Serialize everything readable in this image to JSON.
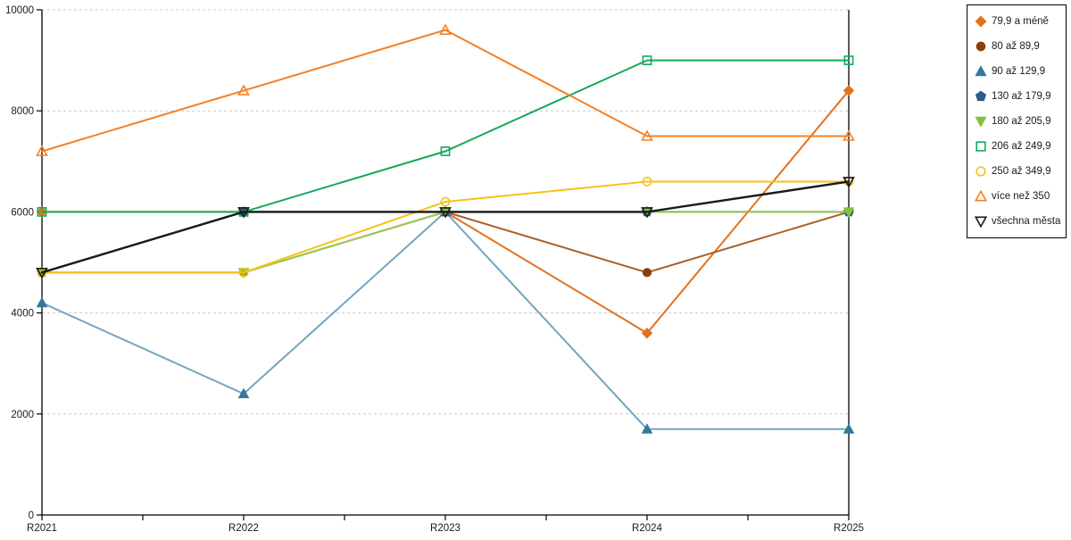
{
  "chart_data": {
    "type": "line",
    "title": "",
    "xlabel": "",
    "ylabel": "",
    "x_labels": [
      "R2021",
      "R2022",
      "R2023",
      "R2024",
      "R2025"
    ],
    "y_ticks": [
      0,
      2000,
      4000,
      6000,
      8000,
      10000
    ],
    "ylim": [
      0,
      10000
    ],
    "grid": "horizontal-dashed",
    "legend_position": "top-right",
    "series": [
      {
        "name": "79,9 a méně",
        "marker": "diamond",
        "filled": true,
        "color": "#E2711D",
        "marker_color": "#E2711D",
        "values": [
          6000,
          6000,
          6000,
          3600,
          8400
        ]
      },
      {
        "name": "80 až 89,9",
        "marker": "circle",
        "filled": true,
        "color": "#A9602B",
        "marker_color": "#8E3D0D",
        "values": [
          4800,
          4800,
          6000,
          4800,
          6000
        ]
      },
      {
        "name": "90 až 129,9",
        "marker": "triangle-up",
        "filled": true,
        "color": "#74A4BF",
        "marker_color": "#34789C",
        "values": [
          4200,
          2400,
          6000,
          1700,
          1700
        ]
      },
      {
        "name": "130 až 179,9",
        "marker": "pentagon",
        "filled": true,
        "color": "#2B5C8A",
        "marker_color": "#2B5C8A",
        "values": [
          4800,
          6000,
          6000,
          6000,
          6000
        ]
      },
      {
        "name": "180 až 205,9",
        "marker": "triangle-down",
        "filled": true,
        "color": "#9CC852",
        "marker_color": "#85C23D",
        "values": [
          4800,
          4800,
          6000,
          6000,
          6000
        ]
      },
      {
        "name": "206 až 249,9",
        "marker": "square",
        "filled": false,
        "color": "#12A95B",
        "marker_color": "#12A95B",
        "values": [
          6000,
          6000,
          7200,
          9000,
          9000
        ]
      },
      {
        "name": "250 až 349,9",
        "marker": "circle",
        "filled": false,
        "color": "#F5C318",
        "marker_color": "#F5C318",
        "values": [
          4800,
          4800,
          6200,
          6600,
          6600
        ]
      },
      {
        "name": "více než 350",
        "marker": "triangle-up",
        "filled": false,
        "color": "#F58025",
        "marker_color": "#F58025",
        "values": [
          7200,
          8400,
          9600,
          7500,
          7500
        ]
      },
      {
        "name": "všechna města",
        "marker": "triangle-down",
        "filled": false,
        "color": "#1A1A1A",
        "marker_color": "#1A1A1A",
        "values": [
          4800,
          6000,
          6000,
          6000,
          6600
        ]
      }
    ],
    "colors": {
      "axis": "#000000",
      "gridline": "#C8C8C8",
      "background": "#FFFFFF",
      "text": "#1A1A1A"
    }
  }
}
